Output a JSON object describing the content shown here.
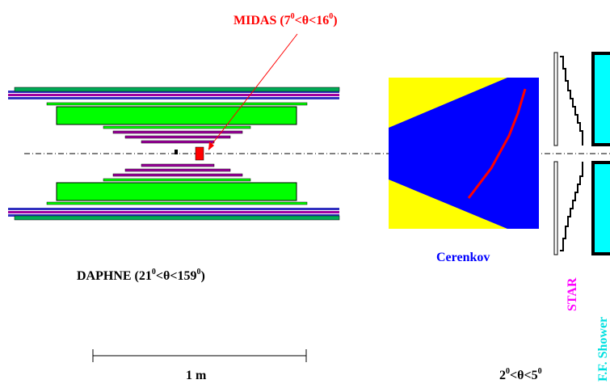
{
  "labels": {
    "midas": "MIDAS (7",
    "midas_sup1": "0",
    "midas_mid": "<θ<16",
    "midas_sup2": "0",
    "midas_end": ")",
    "daphne": "DAPHNE (21",
    "daphne_sup1": "0",
    "daphne_mid": "<θ<159",
    "daphne_sup2": "0",
    "daphne_end": ")",
    "cerenkov": "Cerenkov",
    "star": "STAR",
    "ff_shower": "F.F. Shower",
    "scale": "1 m",
    "forward_range": "2",
    "forward_sup1": "0",
    "forward_mid": "<θ<5",
    "forward_sup2": "0"
  },
  "colors": {
    "midas_text": "#ff0000",
    "midas_detector": "#ff0000",
    "daphne_green": "#00ff00",
    "daphne_magenta": "#a000a0",
    "daphne_blue": "#3030c0",
    "cerenkov_blue": "#0000ff",
    "cerenkov_yellow": "#ffff00",
    "cerenkov_mirror": "#ff0000",
    "cerenkov_text": "#0000ff",
    "star_text": "#ff00ff",
    "ff_shower_text": "#00e0e0",
    "ff_shower_fill": "#00ffff"
  }
}
